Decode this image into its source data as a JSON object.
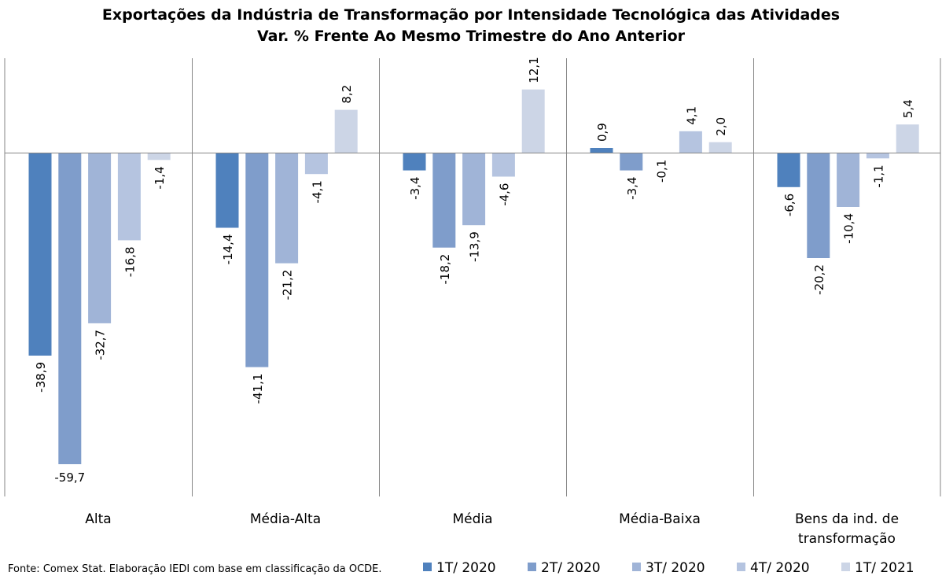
{
  "chart_data": {
    "type": "bar",
    "title": "Exportações da Indústria de Transformação por Intensidade Tecnológica das Atividades",
    "subtitle": "Var. % Frente Ao Mesmo Trimestre do Ano Anterior",
    "categories": [
      "Alta",
      "Média-Alta",
      "Média",
      "Média-Baixa",
      "Bens da ind. de transformação"
    ],
    "series": [
      {
        "name": "1T/ 2020",
        "color": "#4f81bd",
        "values": [
          -38.9,
          -14.4,
          -3.4,
          0.9,
          -6.6
        ],
        "labels": [
          "-38,9",
          "-14,4",
          "-3,4",
          "0,9",
          "-6,6"
        ]
      },
      {
        "name": "2T/ 2020",
        "color": "#7f9dcb",
        "values": [
          -59.7,
          -41.1,
          -18.2,
          -3.4,
          -20.2
        ],
        "labels": [
          "-59,7",
          "-41,1",
          "-18,2",
          "-3,4",
          "-20,2"
        ]
      },
      {
        "name": "3T/ 2020",
        "color": "#a0b4d7",
        "values": [
          -32.7,
          -21.2,
          -13.9,
          -0.1,
          -10.4
        ],
        "labels": [
          "-32,7",
          "-21,2",
          "-13,9",
          "-0,1",
          "-10,4"
        ]
      },
      {
        "name": "4T/ 2020",
        "color": "#b5c4e0",
        "values": [
          -16.8,
          -4.1,
          -4.6,
          4.1,
          -1.1
        ],
        "labels": [
          "-16,8",
          "-4,1",
          "-4,6",
          "4,1",
          "-1,1"
        ]
      },
      {
        "name": "1T/ 2021",
        "color": "#ccd5e6",
        "values": [
          -1.4,
          8.2,
          12.1,
          2.0,
          5.4
        ],
        "labels": [
          "-1,4",
          "8,2",
          "12,1",
          "2,0",
          "5,4"
        ]
      }
    ],
    "ylim": [
      -66,
      18
    ],
    "grid": false,
    "legend_position": "bottom-right",
    "source_note": "Fonte: Comex Stat. Elaboração IEDI com base em classificação da OCDE."
  }
}
